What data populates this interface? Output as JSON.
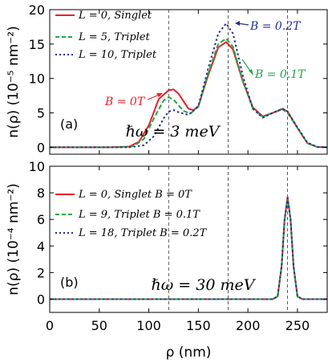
{
  "chart_data": [
    {
      "type": "line",
      "panel_label": "(a)",
      "ylabel": "n(ρ) (10⁻⁵ nm⁻²)",
      "xlim": [
        0,
        280
      ],
      "ylim": [
        -1,
        20
      ],
      "yticks": [
        0,
        5,
        10,
        15,
        20
      ],
      "xticks": [
        0,
        50,
        100,
        150,
        200,
        250
      ],
      "grid": false,
      "legend_position": "top-left",
      "vlines": [
        120,
        180,
        240
      ],
      "annotation": "ℏω = 3 meV",
      "series": [
        {
          "name": "L = 0, Singlet",
          "color": "#e8202a",
          "dash": "solid",
          "points": [
            [
              0,
              0
            ],
            [
              60,
              0
            ],
            [
              80,
              0.1
            ],
            [
              90,
              0.8
            ],
            [
              100,
              3.2
            ],
            [
              110,
              7.0
            ],
            [
              120,
              8.3
            ],
            [
              125,
              8.4
            ],
            [
              130,
              7.8
            ],
            [
              140,
              5.6
            ],
            [
              145,
              5.4
            ],
            [
              150,
              6.0
            ],
            [
              160,
              10.5
            ],
            [
              170,
              14.5
            ],
            [
              178,
              15.3
            ],
            [
              185,
              14.2
            ],
            [
              195,
              9.5
            ],
            [
              205,
              5.8
            ],
            [
              215,
              4.5
            ],
            [
              225,
              5.0
            ],
            [
              235,
              5.6
            ],
            [
              240,
              5.2
            ],
            [
              250,
              2.8
            ],
            [
              260,
              0.6
            ],
            [
              270,
              0.05
            ],
            [
              280,
              0
            ]
          ]
        },
        {
          "name": "L = 5, Triplet",
          "color": "#1fa845",
          "dash": "dashed",
          "points": [
            [
              0,
              0
            ],
            [
              70,
              0
            ],
            [
              85,
              0.2
            ],
            [
              95,
              1.2
            ],
            [
              105,
              4.2
            ],
            [
              115,
              6.8
            ],
            [
              120,
              7.3
            ],
            [
              125,
              6.9
            ],
            [
              135,
              5.3
            ],
            [
              142,
              4.9
            ],
            [
              150,
              5.9
            ],
            [
              160,
              10.8
            ],
            [
              170,
              15.0
            ],
            [
              178,
              15.8
            ],
            [
              185,
              14.6
            ],
            [
              195,
              9.6
            ],
            [
              205,
              5.6
            ],
            [
              215,
              4.4
            ],
            [
              225,
              5.0
            ],
            [
              235,
              5.5
            ],
            [
              240,
              5.0
            ],
            [
              250,
              2.8
            ],
            [
              260,
              0.6
            ],
            [
              270,
              0.05
            ],
            [
              280,
              0
            ]
          ]
        },
        {
          "name": "L = 10, Triplet",
          "color": "#24308f",
          "dash": "dotted",
          "points": [
            [
              0,
              0
            ],
            [
              80,
              0
            ],
            [
              95,
              0.3
            ],
            [
              105,
              1.6
            ],
            [
              115,
              4.2
            ],
            [
              120,
              5.2
            ],
            [
              125,
              5.4
            ],
            [
              130,
              5.1
            ],
            [
              140,
              4.7
            ],
            [
              150,
              6.0
            ],
            [
              160,
              11.5
            ],
            [
              170,
              16.5
            ],
            [
              178,
              18.0
            ],
            [
              185,
              16.5
            ],
            [
              195,
              10.3
            ],
            [
              205,
              5.6
            ],
            [
              215,
              4.3
            ],
            [
              225,
              5.0
            ],
            [
              235,
              5.6
            ],
            [
              240,
              5.2
            ],
            [
              250,
              2.9
            ],
            [
              260,
              0.7
            ],
            [
              270,
              0.05
            ],
            [
              280,
              0
            ]
          ]
        }
      ],
      "annotations": [
        {
          "text": "B = 0T",
          "color": "#e8202a"
        },
        {
          "text": "B = 0.1T",
          "color": "#1fa845"
        },
        {
          "text": "B = 0.2T",
          "color": "#24308f"
        }
      ]
    },
    {
      "type": "line",
      "panel_label": "(b)",
      "ylabel": "n(ρ) (10⁻⁴ nm⁻²)",
      "xlabel": "ρ (nm)",
      "xlim": [
        0,
        280
      ],
      "ylim": [
        -1,
        10
      ],
      "yticks": [
        0,
        2,
        4,
        6,
        8,
        10
      ],
      "xticks": [
        0,
        50,
        100,
        150,
        200,
        250
      ],
      "grid": false,
      "legend_position": "top-left",
      "vlines": [
        120,
        180,
        240
      ],
      "annotation": "ℏω = 30 meV",
      "series": [
        {
          "name": "L = 0, Singlet B = 0T",
          "color": "#e8202a",
          "dash": "solid",
          "points": [
            [
              0,
              0
            ],
            [
              225,
              0
            ],
            [
              230,
              0.2
            ],
            [
              234,
              2.5
            ],
            [
              237,
              6.0
            ],
            [
              240,
              7.7
            ],
            [
              243,
              6.0
            ],
            [
              246,
              2.5
            ],
            [
              250,
              0.2
            ],
            [
              255,
              0
            ],
            [
              280,
              0
            ]
          ]
        },
        {
          "name": "L = 9, Triplet B = 0.1T",
          "color": "#1fa845",
          "dash": "dashed",
          "points": [
            [
              0,
              0
            ],
            [
              225,
              0
            ],
            [
              230,
              0.2
            ],
            [
              234,
              2.5
            ],
            [
              237,
              6.0
            ],
            [
              240,
              7.6
            ],
            [
              243,
              6.0
            ],
            [
              246,
              2.5
            ],
            [
              250,
              0.2
            ],
            [
              255,
              0
            ],
            [
              280,
              0
            ]
          ]
        },
        {
          "name": "L = 18, Triplet B = 0.2T",
          "color": "#24308f",
          "dash": "dotted",
          "points": [
            [
              0,
              0
            ],
            [
              225,
              0
            ],
            [
              230,
              0.2
            ],
            [
              234,
              2.5
            ],
            [
              237,
              6.0
            ],
            [
              240,
              7.6
            ],
            [
              243,
              6.0
            ],
            [
              246,
              2.5
            ],
            [
              250,
              0.2
            ],
            [
              255,
              0
            ],
            [
              280,
              0
            ]
          ]
        }
      ]
    }
  ],
  "legend_a": {
    "items": [
      {
        "L": "L = 0, ",
        "state": "Singlet"
      },
      {
        "L": "L = 5, ",
        "state": "Triplet"
      },
      {
        "L": "L = 10, ",
        "state": "Triplet"
      }
    ]
  },
  "legend_b": {
    "items": [
      {
        "L": "L = 0, ",
        "state": "Singlet B = 0T"
      },
      {
        "L": "L = 9, ",
        "state": "Triplet B = 0.1T"
      },
      {
        "L": "L = 18, ",
        "state": "Triplet B = 0.2T"
      }
    ]
  }
}
